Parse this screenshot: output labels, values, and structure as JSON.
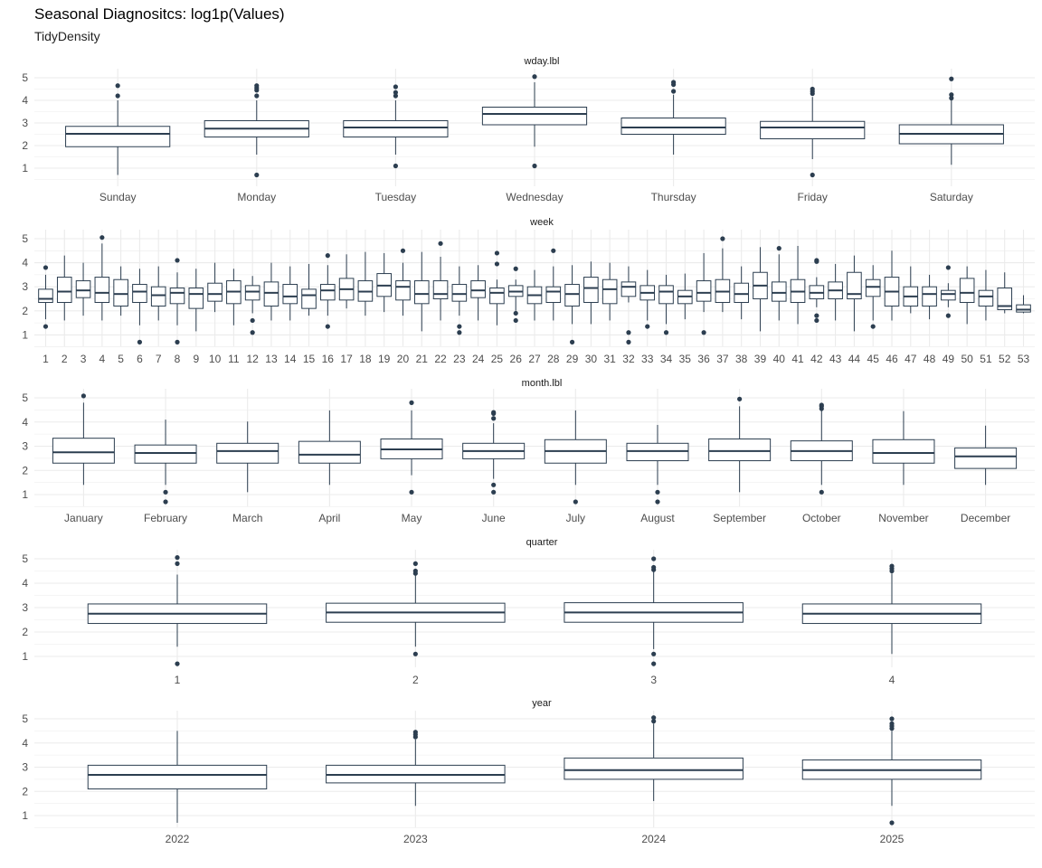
{
  "title": "Seasonal Diagnositcs: log1p(Values)",
  "subtitle": "TidyDensity",
  "colors": {
    "box": "#2c3e50",
    "grid": "#ebebeb",
    "text": "#4d4d4d"
  },
  "chart_data": [
    {
      "type": "box",
      "facet": "wday.lbl",
      "yticks": [
        1,
        2,
        3,
        4,
        5
      ],
      "categories": [
        "Sunday",
        "Monday",
        "Tuesday",
        "Wednesday",
        "Thursday",
        "Friday",
        "Saturday"
      ],
      "boxes": [
        {
          "lo": 0.7,
          "q1": 1.95,
          "med": 2.52,
          "q3": 2.85,
          "hi": 4.0,
          "out": [
            4.2,
            4.65
          ]
        },
        {
          "lo": 1.6,
          "q1": 2.38,
          "med": 2.75,
          "q3": 3.1,
          "hi": 4.0,
          "out": [
            4.2,
            4.45,
            4.55,
            4.65,
            0.7
          ]
        },
        {
          "lo": 1.6,
          "q1": 2.38,
          "med": 2.8,
          "q3": 3.1,
          "hi": 4.0,
          "out": [
            4.2,
            4.35,
            4.6,
            1.1
          ]
        },
        {
          "lo": 1.95,
          "q1": 2.92,
          "med": 3.4,
          "q3": 3.7,
          "hi": 4.8,
          "out": [
            5.05,
            1.1
          ]
        },
        {
          "lo": 1.6,
          "q1": 2.5,
          "med": 2.8,
          "q3": 3.22,
          "hi": 4.25,
          "out": [
            4.4,
            4.7,
            4.8
          ]
        },
        {
          "lo": 1.4,
          "q1": 2.3,
          "med": 2.8,
          "q3": 3.07,
          "hi": 4.15,
          "out": [
            4.3,
            4.4,
            4.5,
            0.7
          ]
        },
        {
          "lo": 1.15,
          "q1": 2.08,
          "med": 2.52,
          "q3": 2.92,
          "hi": 4.05,
          "out": [
            4.1,
            4.25,
            4.95
          ]
        }
      ]
    },
    {
      "type": "box",
      "facet": "week",
      "yticks": [
        1,
        2,
        3,
        4,
        5
      ],
      "categories": [
        "1",
        "2",
        "3",
        "4",
        "5",
        "6",
        "7",
        "8",
        "9",
        "10",
        "11",
        "12",
        "13",
        "14",
        "15",
        "16",
        "17",
        "18",
        "19",
        "20",
        "21",
        "22",
        "23",
        "24",
        "25",
        "26",
        "27",
        "28",
        "29",
        "30",
        "31",
        "32",
        "33",
        "34",
        "35",
        "36",
        "37",
        "38",
        "39",
        "40",
        "41",
        "42",
        "43",
        "44",
        "45",
        "46",
        "47",
        "48",
        "49",
        "50",
        "51",
        "52",
        "53"
      ],
      "boxes": [
        {
          "lo": 1.65,
          "q1": 2.35,
          "med": 2.5,
          "q3": 2.9,
          "hi": 3.5,
          "out": [
            3.8,
            1.35
          ]
        },
        {
          "lo": 1.6,
          "q1": 2.35,
          "med": 2.8,
          "q3": 3.4,
          "hi": 4.3,
          "out": []
        },
        {
          "lo": 1.8,
          "q1": 2.55,
          "med": 2.85,
          "q3": 3.25,
          "hi": 4.0,
          "out": []
        },
        {
          "lo": 1.6,
          "q1": 2.35,
          "med": 2.75,
          "q3": 3.4,
          "hi": 4.8,
          "out": [
            5.05
          ]
        },
        {
          "lo": 1.8,
          "q1": 2.2,
          "med": 2.7,
          "q3": 3.3,
          "hi": 3.85,
          "out": []
        },
        {
          "lo": 1.4,
          "q1": 2.35,
          "med": 2.8,
          "q3": 3.1,
          "hi": 3.75,
          "out": [
            0.7
          ]
        },
        {
          "lo": 1.6,
          "q1": 2.2,
          "med": 2.65,
          "q3": 3.0,
          "hi": 3.85,
          "out": []
        },
        {
          "lo": 1.4,
          "q1": 2.3,
          "med": 2.75,
          "q3": 2.95,
          "hi": 3.6,
          "out": [
            4.1,
            0.7
          ]
        },
        {
          "lo": 1.15,
          "q1": 2.1,
          "med": 2.7,
          "q3": 2.95,
          "hi": 3.75,
          "out": []
        },
        {
          "lo": 1.95,
          "q1": 2.4,
          "med": 2.7,
          "q3": 3.15,
          "hi": 4.0,
          "out": []
        },
        {
          "lo": 1.4,
          "q1": 2.3,
          "med": 2.8,
          "q3": 3.25,
          "hi": 3.75,
          "out": []
        },
        {
          "lo": 1.9,
          "q1": 2.45,
          "med": 2.8,
          "q3": 3.05,
          "hi": 3.45,
          "out": [
            1.6,
            1.1
          ]
        },
        {
          "lo": 1.6,
          "q1": 2.2,
          "med": 2.75,
          "q3": 3.2,
          "hi": 4.0,
          "out": []
        },
        {
          "lo": 1.6,
          "q1": 2.3,
          "med": 2.6,
          "q3": 3.1,
          "hi": 3.85,
          "out": []
        },
        {
          "lo": 1.8,
          "q1": 2.1,
          "med": 2.65,
          "q3": 2.9,
          "hi": 3.95,
          "out": []
        },
        {
          "lo": 1.8,
          "q1": 2.45,
          "med": 2.85,
          "q3": 3.1,
          "hi": 3.9,
          "out": [
            4.3,
            1.35
          ]
        },
        {
          "lo": 2.1,
          "q1": 2.45,
          "med": 2.9,
          "q3": 3.35,
          "hi": 4.35,
          "out": []
        },
        {
          "lo": 1.8,
          "q1": 2.4,
          "med": 2.8,
          "q3": 3.25,
          "hi": 4.45,
          "out": []
        },
        {
          "lo": 1.95,
          "q1": 2.6,
          "med": 3.05,
          "q3": 3.55,
          "hi": 4.4,
          "out": []
        },
        {
          "lo": 1.8,
          "q1": 2.45,
          "med": 3.0,
          "q3": 3.25,
          "hi": 4.0,
          "out": [
            4.5
          ]
        },
        {
          "lo": 1.15,
          "q1": 2.3,
          "med": 2.7,
          "q3": 3.25,
          "hi": 4.45,
          "out": []
        },
        {
          "lo": 1.6,
          "q1": 2.5,
          "med": 2.7,
          "q3": 3.25,
          "hi": 4.25,
          "out": [
            4.8
          ]
        },
        {
          "lo": 1.8,
          "q1": 2.4,
          "med": 2.7,
          "q3": 3.1,
          "hi": 3.85,
          "out": [
            1.35,
            1.1
          ]
        },
        {
          "lo": 1.6,
          "q1": 2.55,
          "med": 2.85,
          "q3": 3.25,
          "hi": 3.9,
          "out": []
        },
        {
          "lo": 1.4,
          "q1": 2.3,
          "med": 2.75,
          "q3": 2.95,
          "hi": 3.3,
          "out": [
            4.4,
            3.95
          ]
        },
        {
          "lo": 2.0,
          "q1": 2.6,
          "med": 2.8,
          "q3": 3.05,
          "hi": 3.3,
          "out": [
            3.75,
            1.9,
            1.6
          ]
        },
        {
          "lo": 1.6,
          "q1": 2.3,
          "med": 2.65,
          "q3": 3.0,
          "hi": 3.7,
          "out": []
        },
        {
          "lo": 1.6,
          "q1": 2.35,
          "med": 2.8,
          "q3": 3.0,
          "hi": 3.85,
          "out": [
            4.5
          ]
        },
        {
          "lo": 1.45,
          "q1": 2.2,
          "med": 2.7,
          "q3": 3.1,
          "hi": 3.9,
          "out": [
            0.7
          ]
        },
        {
          "lo": 1.45,
          "q1": 2.35,
          "med": 2.95,
          "q3": 3.4,
          "hi": 4.05,
          "out": []
        },
        {
          "lo": 1.6,
          "q1": 2.3,
          "med": 2.9,
          "q3": 3.3,
          "hi": 4.0,
          "out": []
        },
        {
          "lo": 2.35,
          "q1": 2.6,
          "med": 3.0,
          "q3": 3.2,
          "hi": 3.85,
          "out": [
            1.1,
            0.7
          ]
        },
        {
          "lo": 1.6,
          "q1": 2.45,
          "med": 2.75,
          "q3": 3.05,
          "hi": 3.7,
          "out": [
            1.35
          ]
        },
        {
          "lo": 1.45,
          "q1": 2.3,
          "med": 2.8,
          "q3": 3.05,
          "hi": 3.5,
          "out": [
            1.1
          ]
        },
        {
          "lo": 1.65,
          "q1": 2.3,
          "med": 2.6,
          "q3": 2.85,
          "hi": 3.55,
          "out": []
        },
        {
          "lo": 1.95,
          "q1": 2.4,
          "med": 2.75,
          "q3": 3.25,
          "hi": 4.4,
          "out": [
            1.1
          ]
        },
        {
          "lo": 1.95,
          "q1": 2.35,
          "med": 2.8,
          "q3": 3.3,
          "hi": 4.6,
          "out": [
            5.0
          ]
        },
        {
          "lo": 1.65,
          "q1": 2.35,
          "med": 2.7,
          "q3": 3.15,
          "hi": 3.85,
          "out": []
        },
        {
          "lo": 1.15,
          "q1": 2.5,
          "med": 3.05,
          "q3": 3.6,
          "hi": 4.65,
          "out": []
        },
        {
          "lo": 1.6,
          "q1": 2.4,
          "med": 2.75,
          "q3": 3.2,
          "hi": 4.35,
          "out": [
            4.6
          ]
        },
        {
          "lo": 1.45,
          "q1": 2.35,
          "med": 2.8,
          "q3": 3.3,
          "hi": 4.7,
          "out": []
        },
        {
          "lo": 2.15,
          "q1": 2.5,
          "med": 2.75,
          "q3": 3.05,
          "hi": 3.4,
          "out": [
            4.05,
            4.1,
            1.8,
            1.6
          ]
        },
        {
          "lo": 1.6,
          "q1": 2.5,
          "med": 2.85,
          "q3": 3.2,
          "hi": 3.95,
          "out": []
        },
        {
          "lo": 1.15,
          "q1": 2.5,
          "med": 2.7,
          "q3": 3.6,
          "hi": 4.3,
          "out": []
        },
        {
          "lo": 1.6,
          "q1": 2.6,
          "med": 3.0,
          "q3": 3.3,
          "hi": 3.9,
          "out": [
            1.35
          ]
        },
        {
          "lo": 1.6,
          "q1": 2.2,
          "med": 2.8,
          "q3": 3.4,
          "hi": 4.5,
          "out": []
        },
        {
          "lo": 1.9,
          "q1": 2.2,
          "med": 2.6,
          "q3": 3.0,
          "hi": 3.85,
          "out": []
        },
        {
          "lo": 1.65,
          "q1": 2.2,
          "med": 2.7,
          "q3": 3.0,
          "hi": 3.5,
          "out": []
        },
        {
          "lo": 2.15,
          "q1": 2.45,
          "med": 2.7,
          "q3": 2.85,
          "hi": 3.15,
          "out": [
            3.8,
            1.8
          ]
        },
        {
          "lo": 1.45,
          "q1": 2.35,
          "med": 2.75,
          "q3": 3.35,
          "hi": 3.85,
          "out": []
        },
        {
          "lo": 1.6,
          "q1": 2.2,
          "med": 2.6,
          "q3": 2.85,
          "hi": 3.7,
          "out": []
        },
        {
          "lo": 1.9,
          "q1": 2.05,
          "med": 2.2,
          "q3": 2.95,
          "hi": 3.6,
          "out": []
        },
        {
          "lo": 1.9,
          "q1": 1.95,
          "med": 2.05,
          "q3": 2.25,
          "hi": 2.65,
          "out": []
        }
      ]
    },
    {
      "type": "box",
      "facet": "month.lbl",
      "yticks": [
        1,
        2,
        3,
        4,
        5
      ],
      "categories": [
        "January",
        "February",
        "March",
        "April",
        "May",
        "June",
        "July",
        "August",
        "September",
        "October",
        "November",
        "December"
      ],
      "boxes": [
        {
          "lo": 1.4,
          "q1": 2.3,
          "med": 2.75,
          "q3": 3.33,
          "hi": 4.8,
          "out": [
            5.08
          ]
        },
        {
          "lo": 1.4,
          "q1": 2.3,
          "med": 2.72,
          "q3": 3.05,
          "hi": 4.1,
          "out": [
            1.1,
            0.7
          ]
        },
        {
          "lo": 1.1,
          "q1": 2.3,
          "med": 2.8,
          "q3": 3.12,
          "hi": 4.02,
          "out": []
        },
        {
          "lo": 1.4,
          "q1": 2.3,
          "med": 2.65,
          "q3": 3.2,
          "hi": 4.48,
          "out": []
        },
        {
          "lo": 1.8,
          "q1": 2.48,
          "med": 2.87,
          "q3": 3.3,
          "hi": 4.48,
          "out": [
            4.8,
            1.1
          ]
        },
        {
          "lo": 1.65,
          "q1": 2.48,
          "med": 2.8,
          "q3": 3.12,
          "hi": 3.95,
          "out": [
            4.15,
            4.35,
            4.4,
            1.4,
            1.1
          ]
        },
        {
          "lo": 1.4,
          "q1": 2.3,
          "med": 2.8,
          "q3": 3.27,
          "hi": 4.48,
          "out": [
            0.7
          ]
        },
        {
          "lo": 1.4,
          "q1": 2.4,
          "med": 2.8,
          "q3": 3.12,
          "hi": 3.88,
          "out": [
            1.1,
            0.7
          ]
        },
        {
          "lo": 1.1,
          "q1": 2.4,
          "med": 2.8,
          "q3": 3.3,
          "hi": 4.65,
          "out": [
            4.95
          ]
        },
        {
          "lo": 1.4,
          "q1": 2.4,
          "med": 2.8,
          "q3": 3.22,
          "hi": 4.5,
          "out": [
            4.55,
            4.65,
            4.7,
            1.1
          ]
        },
        {
          "lo": 1.4,
          "q1": 2.3,
          "med": 2.72,
          "q3": 3.27,
          "hi": 4.45,
          "out": []
        },
        {
          "lo": 1.4,
          "q1": 2.08,
          "med": 2.58,
          "q3": 2.93,
          "hi": 3.85,
          "out": []
        }
      ]
    },
    {
      "type": "box",
      "facet": "quarter",
      "yticks": [
        1,
        2,
        3,
        4,
        5
      ],
      "categories": [
        "1",
        "2",
        "3",
        "4"
      ],
      "boxes": [
        {
          "lo": 1.4,
          "q1": 2.35,
          "med": 2.75,
          "q3": 3.15,
          "hi": 4.35,
          "out": [
            4.8,
            5.05,
            0.7
          ]
        },
        {
          "lo": 1.4,
          "q1": 2.4,
          "med": 2.8,
          "q3": 3.18,
          "hi": 4.35,
          "out": [
            4.4,
            4.5,
            4.8,
            1.1
          ]
        },
        {
          "lo": 1.3,
          "q1": 2.4,
          "med": 2.8,
          "q3": 3.2,
          "hi": 4.5,
          "out": [
            4.55,
            4.65,
            5.0,
            1.1,
            0.7
          ]
        },
        {
          "lo": 1.1,
          "q1": 2.35,
          "med": 2.75,
          "q3": 3.15,
          "hi": 4.4,
          "out": [
            4.5,
            4.6,
            4.7
          ]
        }
      ]
    },
    {
      "type": "box",
      "facet": "year",
      "yticks": [
        1,
        2,
        3,
        4,
        5
      ],
      "categories": [
        "2022",
        "2023",
        "2024",
        "2025"
      ],
      "boxes": [
        {
          "lo": 0.7,
          "q1": 2.1,
          "med": 2.68,
          "q3": 3.08,
          "hi": 4.5,
          "out": []
        },
        {
          "lo": 1.4,
          "q1": 2.35,
          "med": 2.68,
          "q3": 3.08,
          "hi": 4.15,
          "out": [
            4.25,
            4.35,
            4.45
          ]
        },
        {
          "lo": 1.6,
          "q1": 2.5,
          "med": 2.88,
          "q3": 3.38,
          "hi": 4.8,
          "out": [
            4.9,
            5.05
          ]
        },
        {
          "lo": 1.4,
          "q1": 2.5,
          "med": 2.88,
          "q3": 3.3,
          "hi": 4.5,
          "out": [
            4.6,
            4.7,
            4.8,
            5.0,
            0.7
          ]
        }
      ]
    }
  ]
}
